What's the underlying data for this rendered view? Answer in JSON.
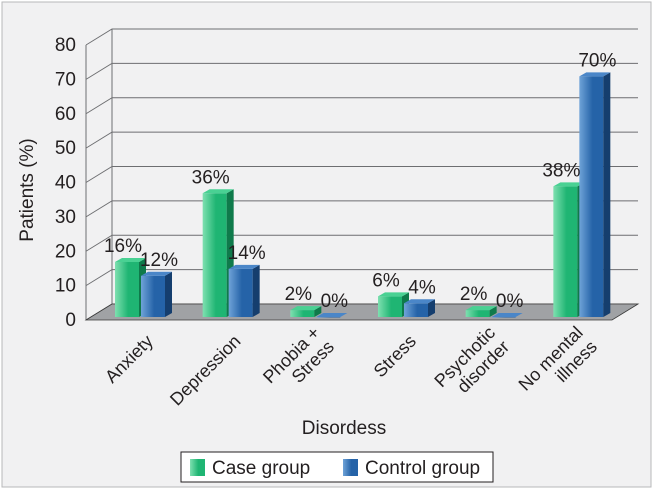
{
  "chart_data": {
    "type": "bar",
    "categories": [
      "Anxiety",
      "Depression",
      "Phobia + Stress",
      "Stress",
      "Psychotic disorder",
      "No mental illness"
    ],
    "category_lines": [
      [
        "Anxiety"
      ],
      [
        "Depression"
      ],
      [
        "Phobia +",
        "Stress"
      ],
      [
        "Stress"
      ],
      [
        "Psychotic",
        "disorder"
      ],
      [
        "No mental",
        "illness"
      ]
    ],
    "series": [
      {
        "name": "Case group",
        "values": [
          16,
          36,
          2,
          6,
          2,
          38
        ],
        "labels": [
          "16%",
          "36%",
          "2%",
          "6%",
          "2%",
          "38%"
        ]
      },
      {
        "name": "Control group",
        "values": [
          12,
          14,
          0,
          4,
          0,
          70
        ],
        "labels": [
          "12%",
          "14%",
          "0%",
          "4%",
          "0%",
          "70%"
        ]
      }
    ],
    "xlabel": "Disordess",
    "ylabel": "Patients (%)",
    "ylim": [
      0,
      80
    ],
    "yticks": [
      0,
      10,
      20,
      30,
      40,
      50,
      60,
      70,
      80
    ],
    "grid": true,
    "legend_position": "bottom",
    "style": "3d",
    "colors": {
      "case_front": "#1fb573",
      "case_light": "#7ee0b0",
      "case_top": "#49d193",
      "case_side": "#0f7a4b",
      "control_front": "#2563a8",
      "control_light": "#6fa3d8",
      "control_top": "#4a86c8",
      "control_side": "#153e6e",
      "floor": "#a0a2a5",
      "background": "#f1f1f2",
      "grid": "#6d6e71"
    }
  }
}
